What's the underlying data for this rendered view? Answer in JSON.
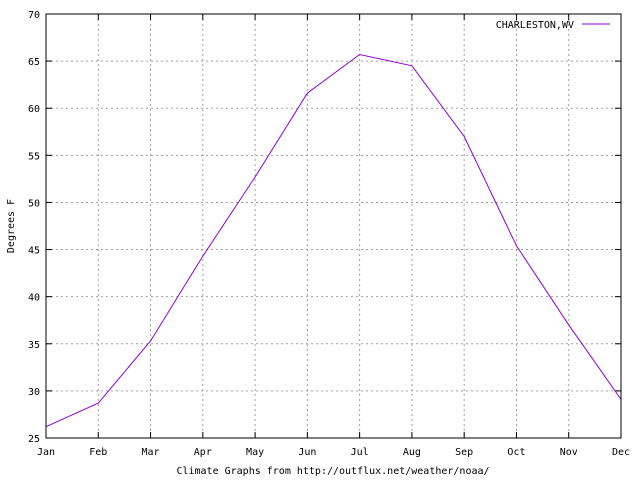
{
  "chart_data": {
    "type": "line",
    "categories": [
      "Jan",
      "Feb",
      "Mar",
      "Apr",
      "May",
      "Jun",
      "Jul",
      "Aug",
      "Sep",
      "Oct",
      "Nov",
      "Dec"
    ],
    "series": [
      {
        "name": "CHARLESTON,WV",
        "values": [
          26.2,
          28.7,
          35.3,
          44.3,
          52.7,
          61.6,
          65.7,
          64.5,
          57.0,
          45.4,
          37.0,
          29.1
        ],
        "color": "#9400d3"
      }
    ],
    "xlabel": "Climate Graphs from http://outflux.net/weather/noaa/",
    "ylabel": "Degrees F",
    "ylim": [
      25,
      70
    ],
    "yticks": [
      25,
      30,
      35,
      40,
      45,
      50,
      55,
      60,
      65,
      70
    ],
    "grid": true,
    "legend_position": "top-right"
  }
}
